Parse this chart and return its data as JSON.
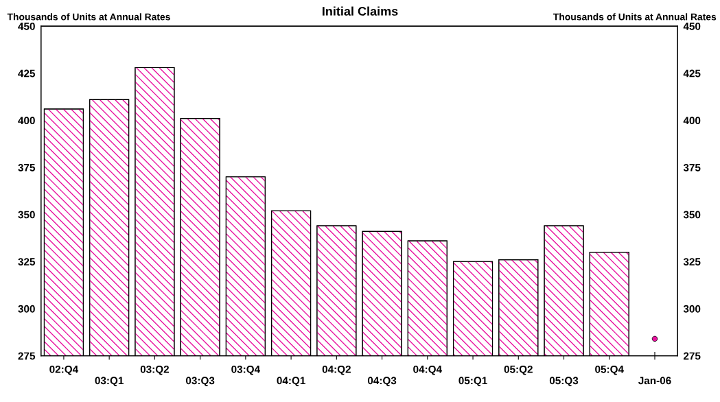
{
  "chart_data": {
    "type": "bar",
    "title": "Initial Claims",
    "ylabel": "Thousands of Units at Annual Rates",
    "y2label": "Thousands of Units at Annual Rates",
    "categories": [
      "02:Q4",
      "03:Q1",
      "03:Q2",
      "03:Q3",
      "03:Q4",
      "04:Q1",
      "04:Q2",
      "04:Q3",
      "04:Q4",
      "05:Q1",
      "05:Q2",
      "05:Q3",
      "05:Q4",
      "Jan-06"
    ],
    "series": [
      {
        "color": "#e8119f",
        "values": [
          406,
          411,
          428,
          401,
          370,
          352,
          344,
          341,
          336,
          325,
          326,
          344,
          330,
          null
        ]
      },
      {
        "type": "scatter",
        "color": "#e8119f",
        "x": [
          "Jan-06"
        ],
        "values": [
          284
        ]
      }
    ],
    "ylim": [
      275,
      450
    ],
    "yticks": [
      275,
      300,
      325,
      350,
      375,
      400,
      425,
      450
    ],
    "y2lim": [
      275,
      450
    ],
    "y2ticks": [
      275,
      300,
      325,
      350,
      375,
      400,
      425,
      450
    ],
    "grid": false,
    "legend": false
  }
}
